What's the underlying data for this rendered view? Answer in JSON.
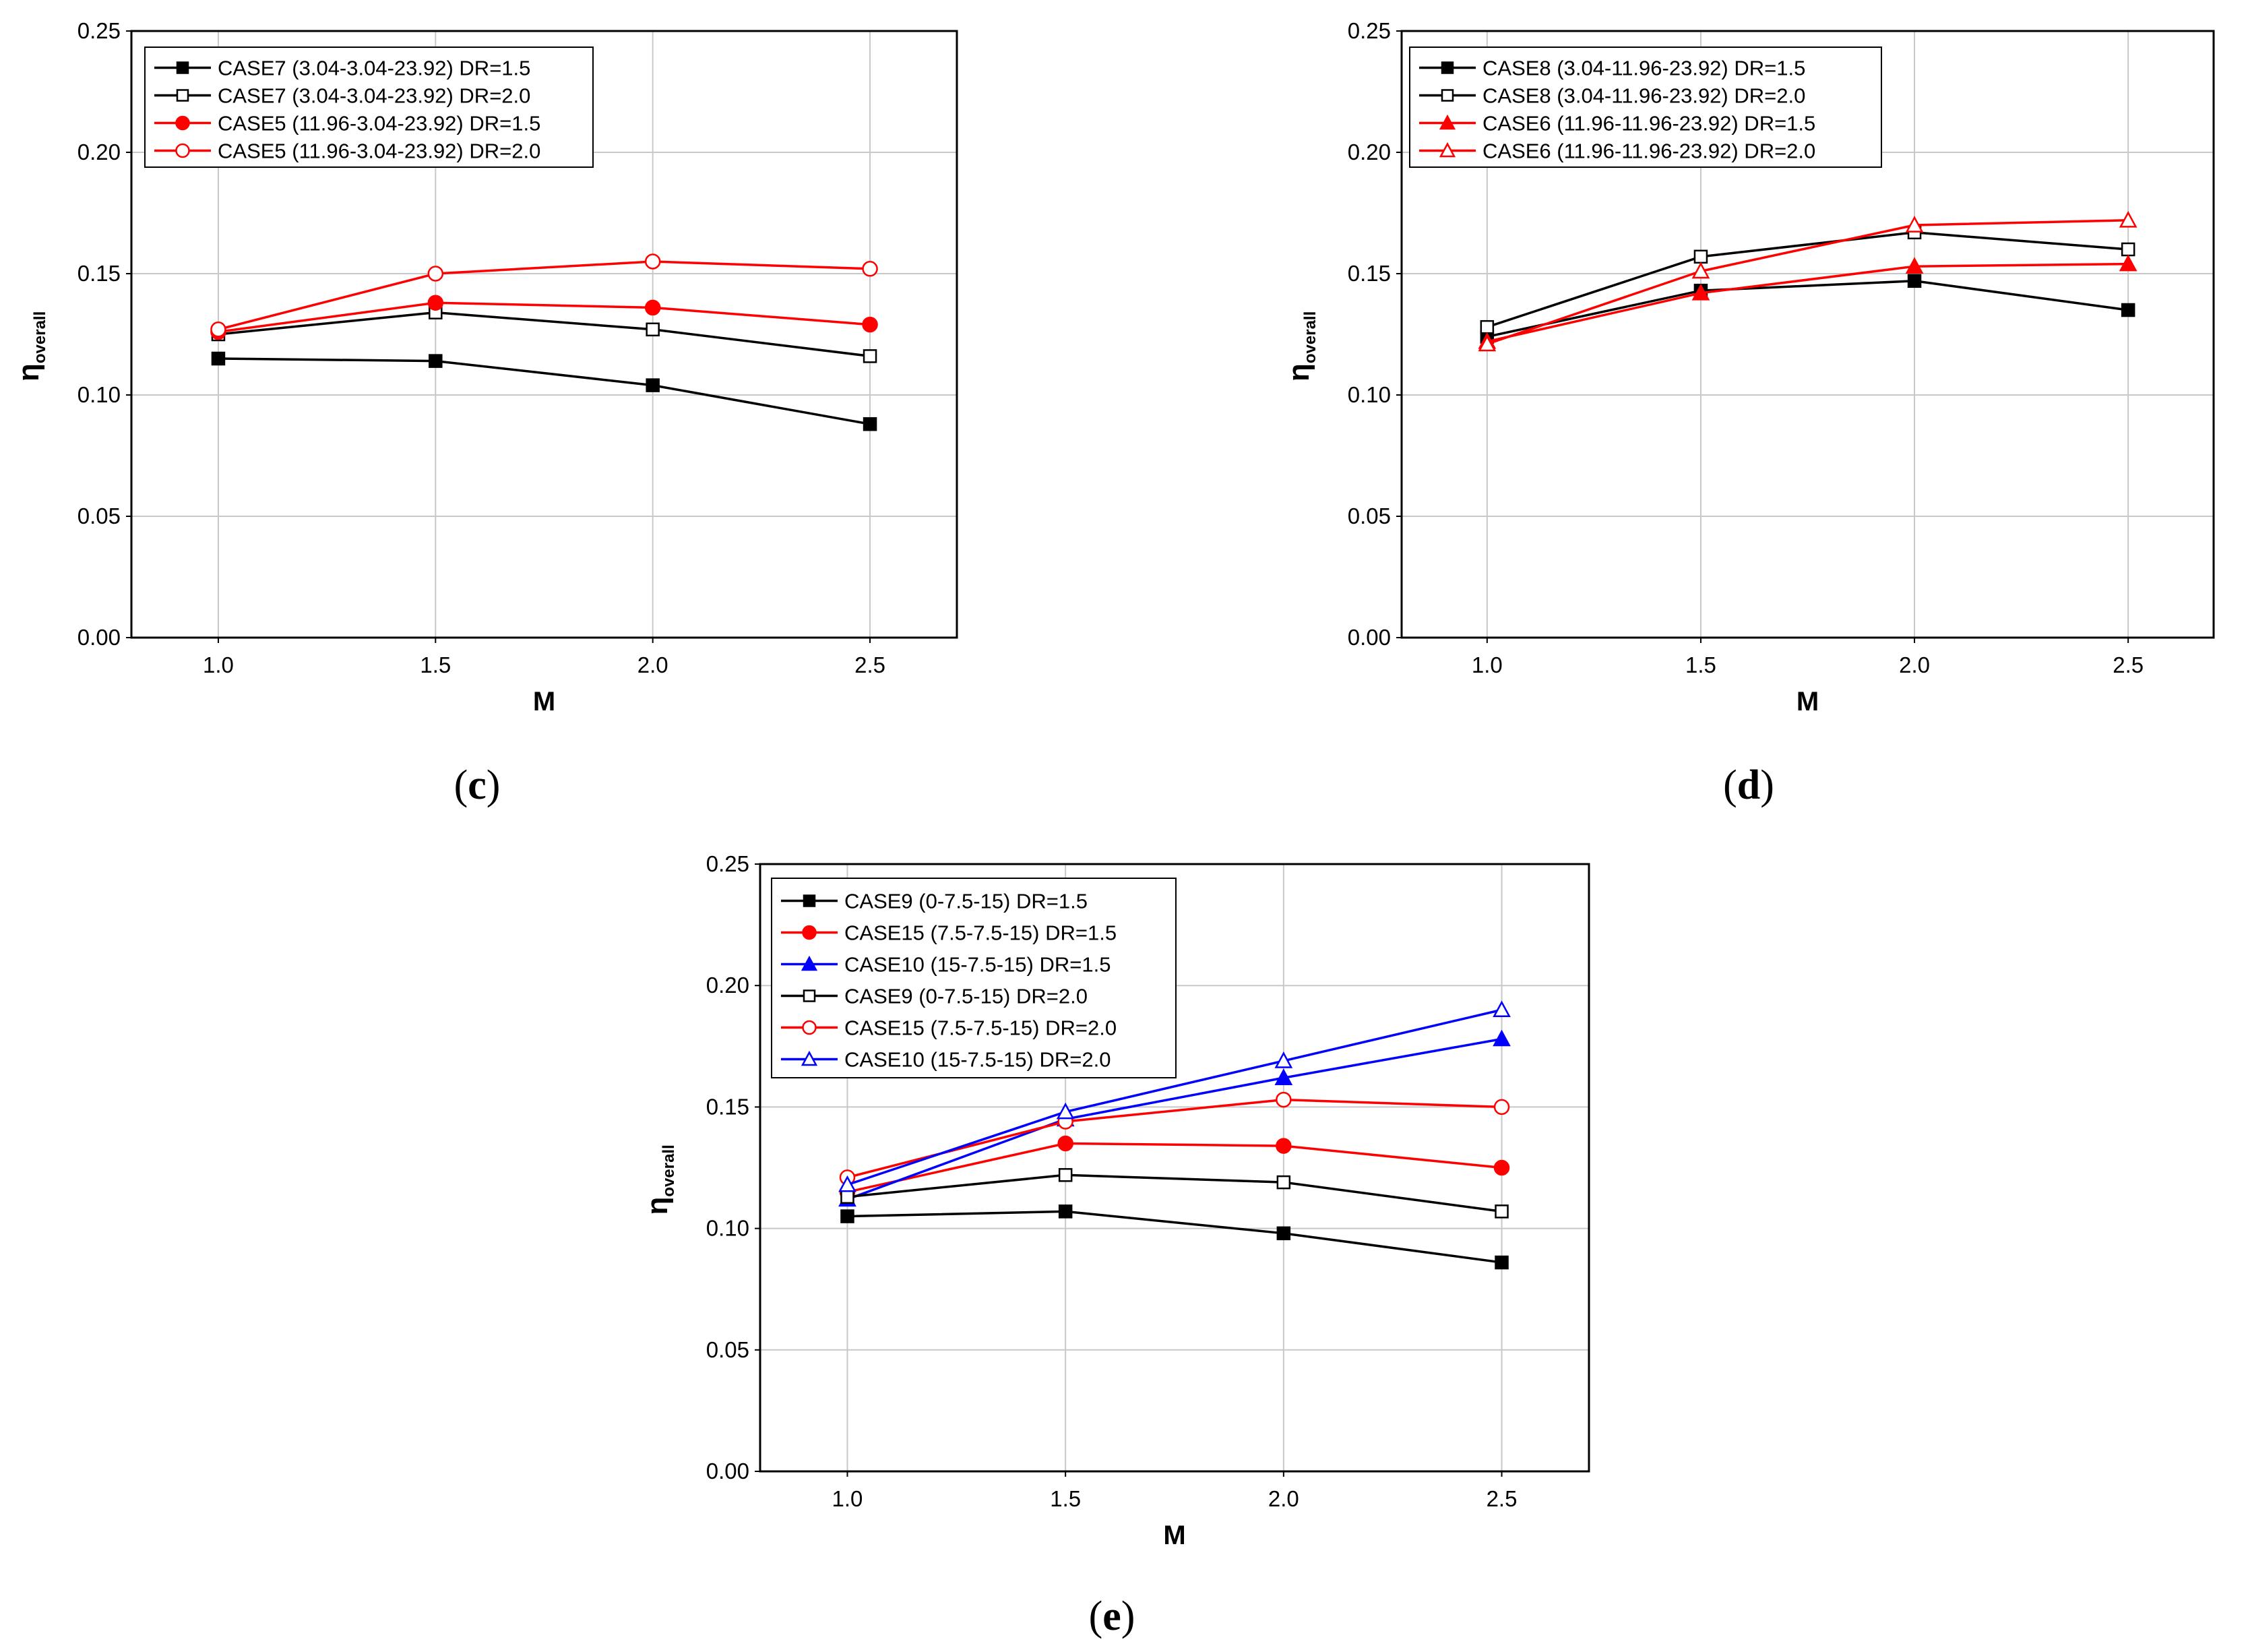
{
  "chart_data": [
    {
      "type": "line",
      "panel_label": "c",
      "xlabel": "M",
      "ylabel": "η",
      "ylabel_sub": "overall",
      "x": [
        1.0,
        1.5,
        2.0,
        2.5
      ],
      "xticks": [
        "1.0",
        "1.5",
        "2.0",
        "2.5"
      ],
      "xlim": [
        0.8,
        2.7
      ],
      "ylim": [
        0.0,
        0.25
      ],
      "yticks": [
        "0.00",
        "0.05",
        "0.10",
        "0.15",
        "0.20",
        "0.25"
      ],
      "grid": true,
      "legend_position": "top-left",
      "series": [
        {
          "name": "CASE7 (3.04-3.04-23.92) DR=1.5",
          "color": "#000000",
          "marker": "square",
          "filled": true,
          "values": [
            0.115,
            0.114,
            0.104,
            0.088
          ]
        },
        {
          "name": "CASE7 (3.04-3.04-23.92) DR=2.0",
          "color": "#000000",
          "marker": "square",
          "filled": false,
          "values": [
            0.125,
            0.134,
            0.127,
            0.116
          ]
        },
        {
          "name": "CASE5 (11.96-3.04-23.92) DR=1.5",
          "color": "#ff0000",
          "marker": "circle",
          "filled": true,
          "values": [
            0.126,
            0.138,
            0.136,
            0.129
          ]
        },
        {
          "name": "CASE5 (11.96-3.04-23.92) DR=2.0",
          "color": "#ff0000",
          "marker": "circle",
          "filled": false,
          "values": [
            0.127,
            0.15,
            0.155,
            0.152
          ]
        }
      ]
    },
    {
      "type": "line",
      "panel_label": "d",
      "xlabel": "M",
      "ylabel": "η",
      "ylabel_sub": "overall",
      "x": [
        1.0,
        1.5,
        2.0,
        2.5
      ],
      "xticks": [
        "1.0",
        "1.5",
        "2.0",
        "2.5"
      ],
      "xlim": [
        0.8,
        2.7
      ],
      "ylim": [
        0.0,
        0.25
      ],
      "yticks": [
        "0.00",
        "0.05",
        "0.10",
        "0.15",
        "0.20",
        "0.25"
      ],
      "grid": true,
      "legend_position": "top-left",
      "series": [
        {
          "name": "CASE8 (3.04-11.96-23.92) DR=1.5",
          "color": "#000000",
          "marker": "square",
          "filled": true,
          "values": [
            0.124,
            0.143,
            0.147,
            0.135
          ]
        },
        {
          "name": "CASE8 (3.04-11.96-23.92) DR=2.0",
          "color": "#000000",
          "marker": "square",
          "filled": false,
          "values": [
            0.128,
            0.157,
            0.167,
            0.16
          ]
        },
        {
          "name": "CASE6 (11.96-11.96-23.92) DR=1.5",
          "color": "#ff0000",
          "marker": "triangle",
          "filled": true,
          "values": [
            0.122,
            0.142,
            0.153,
            0.154
          ]
        },
        {
          "name": "CASE6 (11.96-11.96-23.92) DR=2.0",
          "color": "#ff0000",
          "marker": "triangle",
          "filled": false,
          "values": [
            0.121,
            0.151,
            0.17,
            0.172
          ]
        }
      ]
    },
    {
      "type": "line",
      "panel_label": "e",
      "xlabel": "M",
      "ylabel": "η",
      "ylabel_sub": "overall",
      "x": [
        1.0,
        1.5,
        2.0,
        2.5
      ],
      "xticks": [
        "1.0",
        "1.5",
        "2.0",
        "2.5"
      ],
      "xlim": [
        0.8,
        2.7
      ],
      "ylim": [
        0.0,
        0.25
      ],
      "yticks": [
        "0.00",
        "0.05",
        "0.10",
        "0.15",
        "0.20",
        "0.25"
      ],
      "grid": true,
      "legend_position": "top-left",
      "series": [
        {
          "name": "CASE9 (0-7.5-15) DR=1.5",
          "color": "#000000",
          "marker": "square",
          "filled": true,
          "values": [
            0.105,
            0.107,
            0.098,
            0.086
          ]
        },
        {
          "name": "CASE15 (7.5-7.5-15) DR=1.5",
          "color": "#ff0000",
          "marker": "circle",
          "filled": true,
          "values": [
            0.115,
            0.135,
            0.134,
            0.125
          ]
        },
        {
          "name": "CASE10 (15-7.5-15) DR=1.5",
          "color": "#0000ff",
          "marker": "triangle",
          "filled": true,
          "values": [
            0.112,
            0.145,
            0.162,
            0.178
          ]
        },
        {
          "name": "CASE9 (0-7.5-15) DR=2.0",
          "color": "#000000",
          "marker": "square",
          "filled": false,
          "values": [
            0.113,
            0.122,
            0.119,
            0.107
          ]
        },
        {
          "name": "CASE15 (7.5-7.5-15) DR=2.0",
          "color": "#ff0000",
          "marker": "circle",
          "filled": false,
          "values": [
            0.121,
            0.144,
            0.153,
            0.15
          ]
        },
        {
          "name": "CASE10 (15-7.5-15) DR=2.0",
          "color": "#0000ff",
          "marker": "triangle",
          "filled": false,
          "values": [
            0.118,
            0.148,
            0.169,
            0.19
          ]
        }
      ]
    }
  ]
}
